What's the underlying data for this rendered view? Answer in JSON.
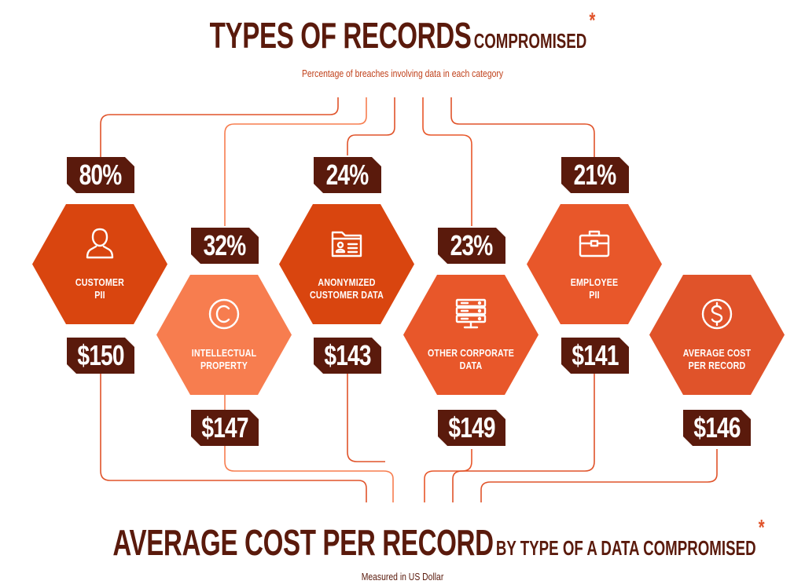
{
  "header": {
    "title_main": "TYPES OF RECORDS",
    "title_sub": "COMPROMISED",
    "asterisk": "*",
    "subtitle": "Percentage of breaches involving data in each category"
  },
  "footer": {
    "title_main": "AVERAGE COST PER RECORD",
    "title_sub": "BY TYPE OF A DATA COMPROMISED",
    "asterisk": "*",
    "subtitle": "Measured in US Dollar"
  },
  "colors": {
    "dark_brown": "#5a1a0c",
    "hex_dark_orange": "#d9450f",
    "hex_mid_orange": "#e8572a",
    "hex_light_orange": "#f77d4f",
    "line_orange": "#e55b2d",
    "subtitle_orange": "#c0411b"
  },
  "categories": [
    {
      "name_line1": "CUSTOMER",
      "name_line2": "PII",
      "percent": "80%",
      "cost": "$150",
      "icon": "user-icon"
    },
    {
      "name_line1": "INTELLECTUAL",
      "name_line2": "PROPERTY",
      "percent": "32%",
      "cost": "$147",
      "icon": "copyright-icon"
    },
    {
      "name_line1": "ANONYMIZED",
      "name_line2": "CUSTOMER DATA",
      "percent": "24%",
      "cost": "$143",
      "icon": "id-folder-icon"
    },
    {
      "name_line1": "OTHER CORPORATE",
      "name_line2": "DATA",
      "percent": "23%",
      "cost": "$149",
      "icon": "server-icon"
    },
    {
      "name_line1": "EMPLOYEE",
      "name_line2": "PII",
      "percent": "21%",
      "cost": "$141",
      "icon": "briefcase-icon"
    },
    {
      "name_line1": "AVERAGE COST",
      "name_line2": "PER RECORD",
      "cost": "$146",
      "icon": "dollar-icon"
    }
  ]
}
